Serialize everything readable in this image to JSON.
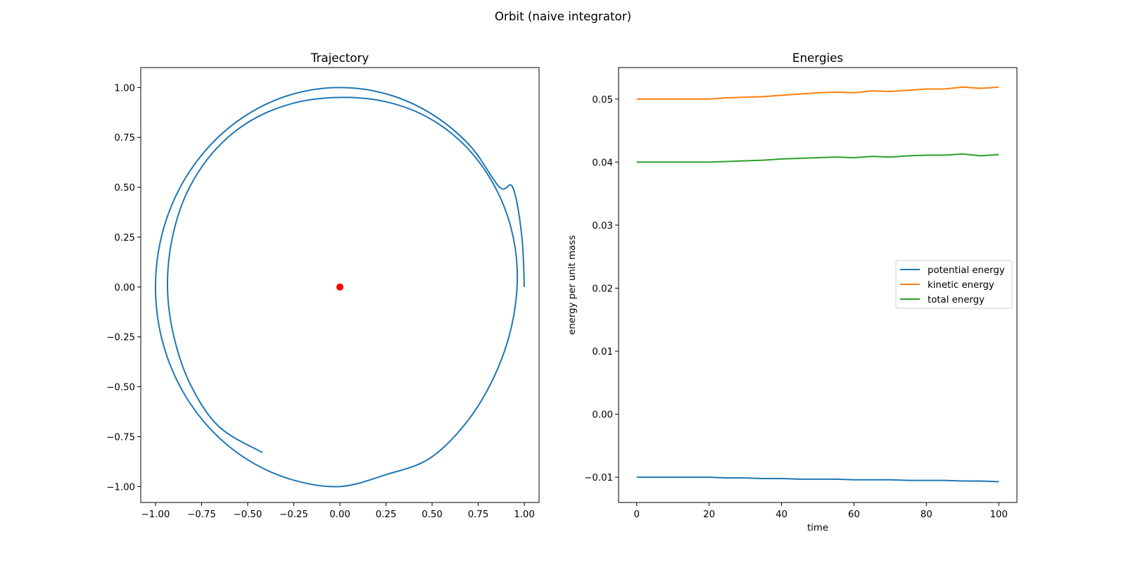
{
  "figure": {
    "suptitle": "Orbit (naive integrator)"
  },
  "chart_data": [
    {
      "type": "line",
      "title": "Trajectory",
      "xlabel": "",
      "ylabel": "",
      "xlim": [
        -1.08,
        1.08
      ],
      "ylim": [
        -1.08,
        1.1
      ],
      "xticks": [
        -1.0,
        -0.75,
        -0.5,
        -0.25,
        0.0,
        0.25,
        0.5,
        0.75,
        1.0
      ],
      "yticks": [
        -1.0,
        -0.75,
        -0.5,
        -0.25,
        0.0,
        0.25,
        0.5,
        0.75,
        1.0
      ],
      "xtick_labels": [
        "−1.00",
        "−0.75",
        "−0.50",
        "−0.25",
        "0.00",
        "0.25",
        "0.50",
        "0.75",
        "1.00"
      ],
      "ytick_labels": [
        "−1.00",
        "−0.75",
        "−0.50",
        "−0.25",
        "0.00",
        "0.25",
        "0.50",
        "0.75",
        "1.00"
      ],
      "grid": false,
      "series": [
        {
          "color": "#1f77b4",
          "x": [
            1.0,
            0.986,
            0.937,
            0.866,
            0.707,
            0.5,
            0.259,
            0.0,
            -0.259,
            -0.5,
            -0.707,
            -0.866,
            -0.966,
            -1.0,
            -0.966,
            -0.866,
            -0.707,
            -0.5,
            -0.259,
            0.0,
            0.252,
            0.485,
            0.685,
            0.836,
            0.93,
            0.962,
            0.927,
            0.83,
            0.677,
            0.477,
            0.243,
            -0.01,
            -0.258,
            -0.49,
            -0.683,
            -0.826,
            -0.908,
            -0.935,
            -0.9,
            -0.81,
            -0.656,
            -0.42
          ],
          "y": [
            0.0,
            0.259,
            0.5,
            0.5,
            0.707,
            0.866,
            0.966,
            1.0,
            0.966,
            0.866,
            0.707,
            0.5,
            0.259,
            0.0,
            -0.259,
            -0.5,
            -0.707,
            -0.866,
            -0.966,
            -1.0,
            -0.94,
            -0.86,
            -0.68,
            -0.45,
            -0.2,
            0.06,
            0.3,
            0.52,
            0.71,
            0.85,
            0.93,
            0.95,
            0.92,
            0.83,
            0.68,
            0.48,
            0.25,
            0.0,
            -0.25,
            -0.49,
            -0.7,
            -0.83
          ]
        }
      ],
      "points": [
        {
          "x": 0.0,
          "y": 0.0,
          "color": "#ff0000"
        }
      ]
    },
    {
      "type": "line",
      "title": "Energies",
      "xlabel": "time",
      "ylabel": "energy per unit mass",
      "xlim": [
        -5,
        105
      ],
      "ylim": [
        -0.014,
        0.055
      ],
      "xticks": [
        0,
        20,
        40,
        60,
        80,
        100
      ],
      "yticks": [
        -0.01,
        0.0,
        0.01,
        0.02,
        0.03,
        0.04,
        0.05
      ],
      "xtick_labels": [
        "0",
        "20",
        "40",
        "60",
        "80",
        "100"
      ],
      "ytick_labels": [
        "−0.01",
        "0.00",
        "0.01",
        "0.02",
        "0.03",
        "0.04",
        "0.05"
      ],
      "grid": false,
      "legend_position": "center-right",
      "x": [
        0,
        5,
        10,
        15,
        20,
        25,
        30,
        35,
        40,
        45,
        50,
        55,
        60,
        65,
        70,
        75,
        80,
        85,
        90,
        95,
        100
      ],
      "series": [
        {
          "name": "potential energy",
          "color": "#1f77b4",
          "values": [
            -0.01,
            -0.01,
            -0.01,
            -0.01,
            -0.01,
            -0.0101,
            -0.0101,
            -0.0102,
            -0.0102,
            -0.0103,
            -0.0103,
            -0.0103,
            -0.0104,
            -0.0104,
            -0.0104,
            -0.0105,
            -0.0105,
            -0.0105,
            -0.0106,
            -0.0106,
            -0.0107
          ]
        },
        {
          "name": "kinetic energy",
          "color": "#ff7f0e",
          "values": [
            0.05,
            0.05,
            0.05,
            0.05,
            0.05,
            0.0502,
            0.0503,
            0.0504,
            0.0506,
            0.0508,
            0.051,
            0.0511,
            0.051,
            0.0513,
            0.0512,
            0.0514,
            0.0516,
            0.0516,
            0.0519,
            0.0517,
            0.0519
          ]
        },
        {
          "name": "total energy",
          "color": "#2ca02c",
          "values": [
            0.04,
            0.04,
            0.04,
            0.04,
            0.04,
            0.0401,
            0.0402,
            0.0403,
            0.0405,
            0.0406,
            0.0407,
            0.0408,
            0.0407,
            0.0409,
            0.0408,
            0.041,
            0.0411,
            0.0411,
            0.0413,
            0.041,
            0.0412
          ]
        }
      ]
    }
  ]
}
